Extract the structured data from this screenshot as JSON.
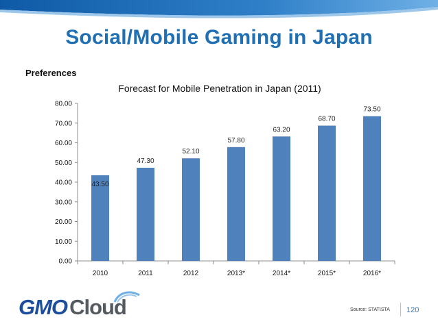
{
  "slide": {
    "title": "Social/Mobile Gaming in Japan",
    "section_label": "Preferences",
    "source": "Source: STATISTA",
    "page_number": "120",
    "logo": {
      "primary": "GMO",
      "secondary": "Cloud"
    }
  },
  "colors": {
    "title": "#1f6fb2",
    "bar": "#4f81bd",
    "band_dark": "#1667b4",
    "band_light": "#5aa0dc"
  },
  "chart_data": {
    "type": "bar",
    "title": "Forecast  for Mobile Penetration in Japan (2011)",
    "categories": [
      "2010",
      "2011",
      "2012",
      "2013*",
      "2014*",
      "2015*",
      "2016*"
    ],
    "values": [
      43.5,
      47.3,
      52.1,
      57.8,
      63.2,
      68.7,
      73.5
    ],
    "value_labels": [
      "43.50",
      "47.30",
      "52.10",
      "57.80",
      "63.20",
      "68.70",
      "73.50"
    ],
    "ylim": [
      0,
      80
    ],
    "ytick_labels": [
      "0.00",
      "10.00",
      "20.00",
      "30.00",
      "40.00",
      "50.00",
      "60.00",
      "70.00",
      "80.00"
    ],
    "grid": false,
    "xlabel": "",
    "ylabel": ""
  }
}
